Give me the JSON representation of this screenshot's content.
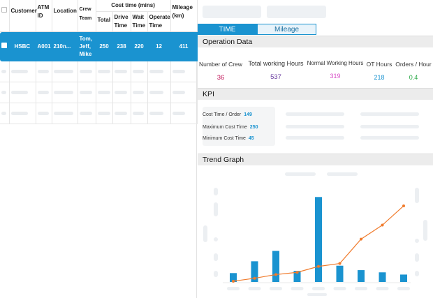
{
  "table": {
    "headers": {
      "customer": "Customer",
      "atm_id": "ATM ID",
      "location": "Location",
      "crew_team": "Crew Team",
      "cost_time_group": "Cost time (mins)",
      "total": "Total",
      "drive_time": "Drive Time",
      "wait_time": "Wait Time",
      "operate_time": "Operate Time",
      "mileage": "Mileage (km)"
    },
    "selected_row": {
      "customer": "HSBC",
      "atm_id": "A001",
      "location": "210n...",
      "crew_team": "Tom, Jeff, Mike",
      "total": "250",
      "drive_time": "238",
      "wait_time": "220",
      "operate_time": "12",
      "mileage": "411"
    }
  },
  "tabs": {
    "time": "TIME",
    "mileage": "Mileage"
  },
  "operation": {
    "title": "Operation Data",
    "metrics": [
      {
        "label": "Number of Crew",
        "value": "36",
        "color": "#c2185b"
      },
      {
        "label": "Total working Hours",
        "value": "537",
        "color": "#6a3fa0"
      },
      {
        "label": "Normal Working Hours",
        "value": "319",
        "color": "#d84fc7"
      },
      {
        "label": "OT Hours",
        "value": "218",
        "color": "#1a93d0"
      },
      {
        "label": "Orders / Hour",
        "value": "0.4",
        "color": "#27a844"
      }
    ]
  },
  "kpi": {
    "title": "KPI",
    "rows": [
      {
        "label": "Cost Time / Order",
        "value": "149"
      },
      {
        "label": "Maximum Cost Time",
        "value": "250"
      },
      {
        "label": "Minimum Cost Time",
        "value": "45"
      }
    ]
  },
  "trend": {
    "title": "Trend Graph"
  },
  "chart_data": {
    "type": "bar",
    "bar_color": "#1a93d0",
    "line_color": "#f07b2c",
    "series": [
      {
        "type": "bar",
        "values": [
          12,
          28,
          42,
          15,
          115,
          22,
          16,
          13,
          10
        ]
      },
      {
        "type": "line",
        "values": [
          1,
          5,
          10,
          13,
          21,
          25,
          58,
          77,
          103
        ]
      }
    ],
    "ylim": [
      0,
      120
    ]
  }
}
